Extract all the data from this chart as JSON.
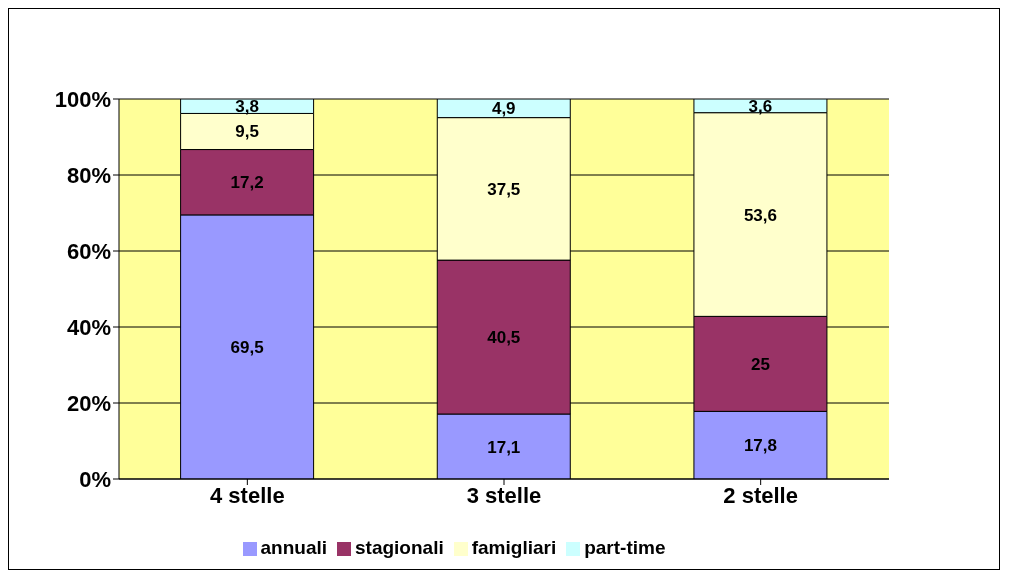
{
  "chart_data": {
    "type": "bar",
    "stacked": true,
    "categories": [
      "4 stelle",
      "3 stelle",
      "2 stelle"
    ],
    "series": [
      {
        "name": "annuali",
        "color": "#9999ff",
        "values": [
          69.5,
          17.1,
          17.8
        ],
        "value_labels": [
          "69,5",
          "17,1",
          "17,8"
        ]
      },
      {
        "name": "stagionali",
        "color": "#993366",
        "values": [
          17.2,
          40.5,
          25
        ],
        "value_labels": [
          "17,2",
          "40,5",
          "25"
        ]
      },
      {
        "name": "famigliari",
        "color": "#ffffcc",
        "values": [
          9.5,
          37.5,
          53.6
        ],
        "value_labels": [
          "9,5",
          "37,5",
          "53,6"
        ]
      },
      {
        "name": "part-time",
        "color": "#ccffff",
        "values": [
          3.8,
          4.9,
          3.6
        ],
        "value_labels": [
          "3,8",
          "4,9",
          "3,6"
        ]
      }
    ],
    "ylim": [
      0,
      100
    ],
    "yticks": [
      {
        "value": 0,
        "label": "0%"
      },
      {
        "value": 20,
        "label": "20%"
      },
      {
        "value": 40,
        "label": "40%"
      },
      {
        "value": 60,
        "label": "60%"
      },
      {
        "value": 80,
        "label": "80%"
      },
      {
        "value": 100,
        "label": "100%"
      }
    ],
    "grid": "y",
    "legend": "bottom"
  }
}
